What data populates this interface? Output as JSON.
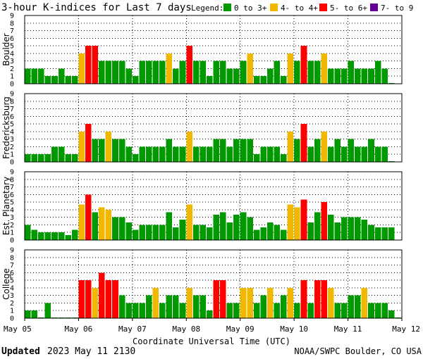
{
  "header": {
    "title": "3-hour K-indices for Last 7 days",
    "legend_label": "Legend:",
    "legend": [
      {
        "label": "0 to 3+",
        "color": "#009900"
      },
      {
        "label": "4- to 4+",
        "color": "#f0b800"
      },
      {
        "label": "5- to 6+",
        "color": "#ff0000"
      },
      {
        "label": "7- to 9",
        "color": "#660099"
      }
    ]
  },
  "footer": {
    "updated_label": "Updated",
    "updated_value": "2023 May 11 2130",
    "source": "NOAA/SWPC Boulder, CO USA"
  },
  "chart_data": {
    "type": "bar",
    "title": "3-hour K-indices for Last 7 days",
    "xlabel": "Coordinate Universal Time (UTC)",
    "x_ticks": [
      "May 05",
      "May 06",
      "May 07",
      "May 08",
      "May 09",
      "May 10",
      "May 11",
      "May 12"
    ],
    "ylim": [
      0,
      9
    ],
    "y_ticks": [
      "0",
      "1",
      "2",
      "3",
      "4",
      "5",
      "6",
      "7",
      "8",
      "9"
    ],
    "bars_per_day": 8,
    "color_scale": [
      {
        "max": 3.99,
        "color": "#009900"
      },
      {
        "max": 4.99,
        "color": "#f0b800"
      },
      {
        "max": 6.99,
        "color": "#ff0000"
      },
      {
        "max": 9,
        "color": "#660099"
      }
    ],
    "panels": [
      {
        "name": "Boulder",
        "values": [
          2,
          2,
          2,
          1,
          1,
          2,
          1,
          1,
          4,
          5,
          5,
          3,
          3,
          3,
          3,
          2,
          1,
          3,
          3,
          3,
          3,
          4,
          2,
          3,
          5,
          3,
          3,
          1,
          3,
          3,
          2,
          2,
          3,
          4,
          1,
          1,
          2,
          3,
          1,
          4,
          3,
          5,
          3,
          3,
          4,
          2,
          2,
          2,
          3,
          2,
          2,
          2,
          3,
          2,
          0
        ]
      },
      {
        "name": "Fredericksburg",
        "values": [
          1,
          1,
          1,
          1,
          2,
          2,
          1,
          1,
          4,
          5,
          3,
          3,
          4,
          3,
          3,
          2,
          1,
          2,
          2,
          2,
          2,
          3,
          2,
          2,
          4,
          2,
          2,
          2,
          3,
          3,
          2,
          3,
          3,
          3,
          1,
          2,
          2,
          2,
          1,
          4,
          3,
          5,
          2,
          3,
          4,
          2,
          3,
          2,
          3,
          2,
          2,
          3,
          2,
          2,
          0
        ]
      },
      {
        "name": "Est. Planetary",
        "values": [
          2,
          1.33,
          1,
          1,
          1,
          1,
          0.67,
          1.33,
          4.67,
          6,
          3.67,
          4.33,
          4,
          3,
          3,
          2.33,
          1.33,
          2,
          2,
          2,
          2,
          3.67,
          1.67,
          2.67,
          4.67,
          2,
          2,
          1.67,
          3.33,
          3.67,
          2.33,
          3.33,
          3.67,
          3,
          1.33,
          1.67,
          2.33,
          2,
          1.33,
          4.67,
          4.33,
          5.33,
          2.33,
          3.67,
          5,
          3.33,
          2.33,
          3,
          3,
          3,
          2.67,
          2,
          1.67,
          1.67,
          1.67
        ]
      },
      {
        "name": "College",
        "values": [
          1,
          1,
          0,
          2,
          0,
          0,
          0,
          0,
          5,
          5,
          4,
          6,
          5,
          5,
          3,
          2,
          2,
          2,
          3,
          4,
          2,
          3,
          3,
          2,
          4,
          3,
          3,
          1,
          5,
          5,
          2,
          2,
          4,
          4,
          2,
          3,
          4,
          2,
          3,
          4,
          2,
          5,
          2,
          5,
          5,
          4,
          2,
          2,
          3,
          3,
          4,
          2,
          2,
          2,
          1,
          0
        ]
      }
    ]
  }
}
